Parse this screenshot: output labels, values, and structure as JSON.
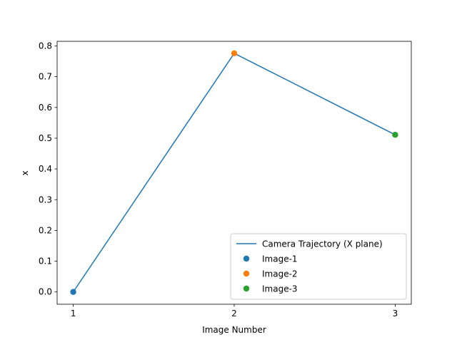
{
  "chart_data": {
    "type": "line",
    "xlabel": "Image Number",
    "ylabel": "x",
    "x": [
      1,
      2,
      3
    ],
    "xlim": [
      0.9,
      3.1
    ],
    "ylim": [
      -0.04,
      0.815
    ],
    "xticks": [
      "1",
      "2",
      "3"
    ],
    "yticks": [
      "0.0",
      "0.1",
      "0.2",
      "0.3",
      "0.4",
      "0.5",
      "0.6",
      "0.7",
      "0.8"
    ],
    "grid": false,
    "legend_position": "lower-right",
    "series": [
      {
        "name": "Camera Trajectory (X plane)",
        "kind": "line",
        "color": "#1f77b4",
        "x": [
          1,
          2,
          3
        ],
        "y": [
          0.0,
          0.776,
          0.511
        ]
      },
      {
        "name": "Image-1",
        "kind": "scatter",
        "color": "#1f77b4",
        "x": [
          1
        ],
        "y": [
          0.0
        ]
      },
      {
        "name": "Image-2",
        "kind": "scatter",
        "color": "#ff7f0e",
        "x": [
          2
        ],
        "y": [
          0.776
        ]
      },
      {
        "name": "Image-3",
        "kind": "scatter",
        "color": "#2ca02c",
        "x": [
          3
        ],
        "y": [
          0.511
        ]
      }
    ]
  }
}
